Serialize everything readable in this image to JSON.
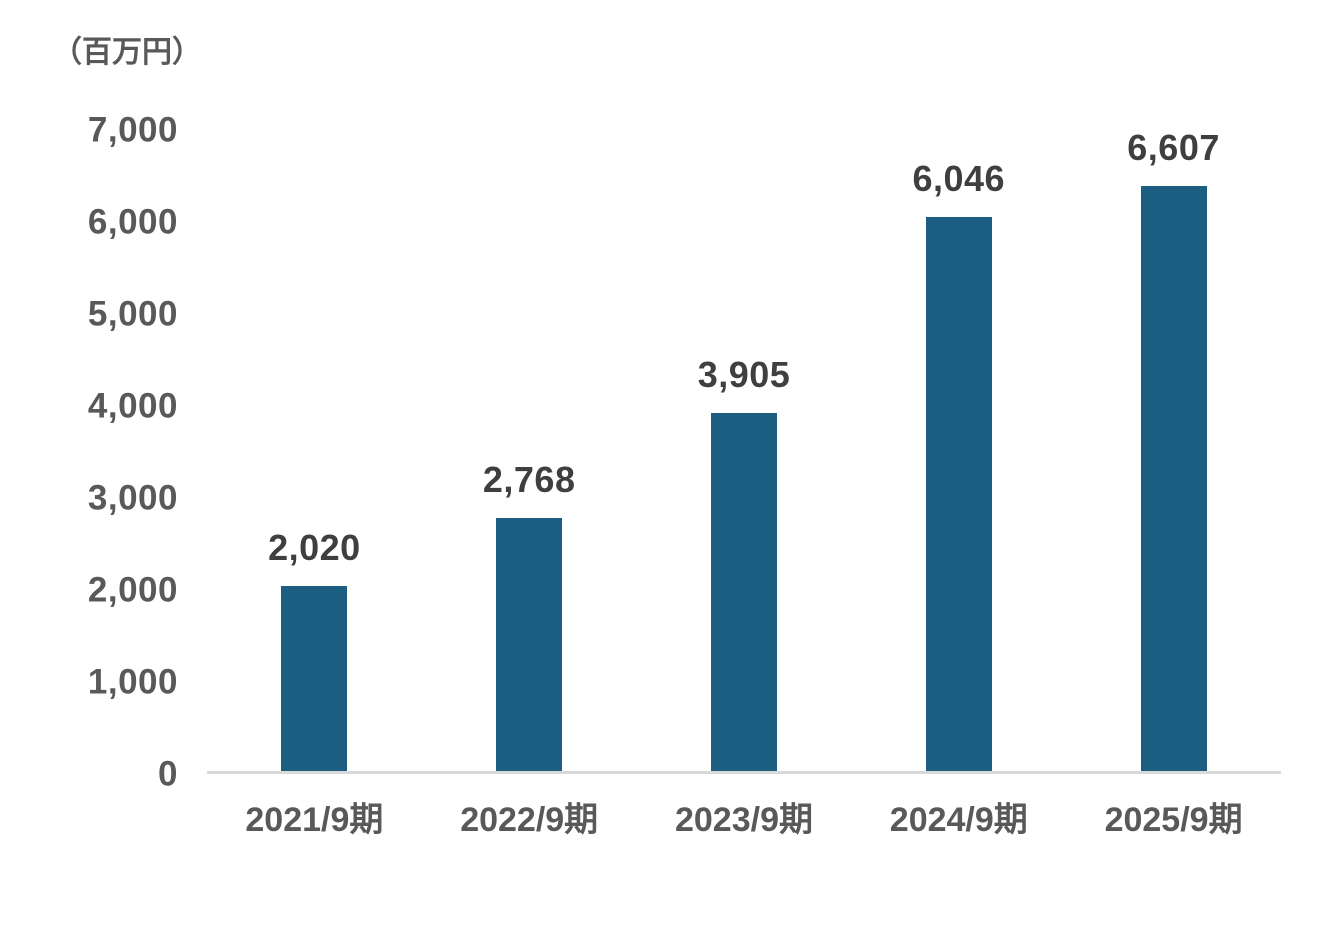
{
  "chart_data": {
    "type": "bar",
    "title": "",
    "unit_label": "（百万円）",
    "categories": [
      "2021/9期",
      "2022/9期",
      "2023/9期",
      "2024/9期",
      "2025/9期"
    ],
    "values": [
      2020,
      2768,
      3905,
      6046,
      6607
    ],
    "value_labels": [
      "2,020",
      "2,768",
      "3,905",
      "6,046",
      "6,607"
    ],
    "y_ticks": [
      "0",
      "1,000",
      "2,000",
      "3,000",
      "4,000",
      "5,000",
      "6,000",
      "7,000"
    ],
    "ylim": [
      0,
      7000
    ],
    "xlabel": "",
    "ylabel": "（百万円）",
    "grid": false,
    "legend_position": "none",
    "bar_color": "#1B5E82",
    "label_color": "#3F3F3F",
    "axis_text_color": "#595959",
    "baseline_color": "#D9D9D9",
    "background_color": "#FFFFFF"
  }
}
